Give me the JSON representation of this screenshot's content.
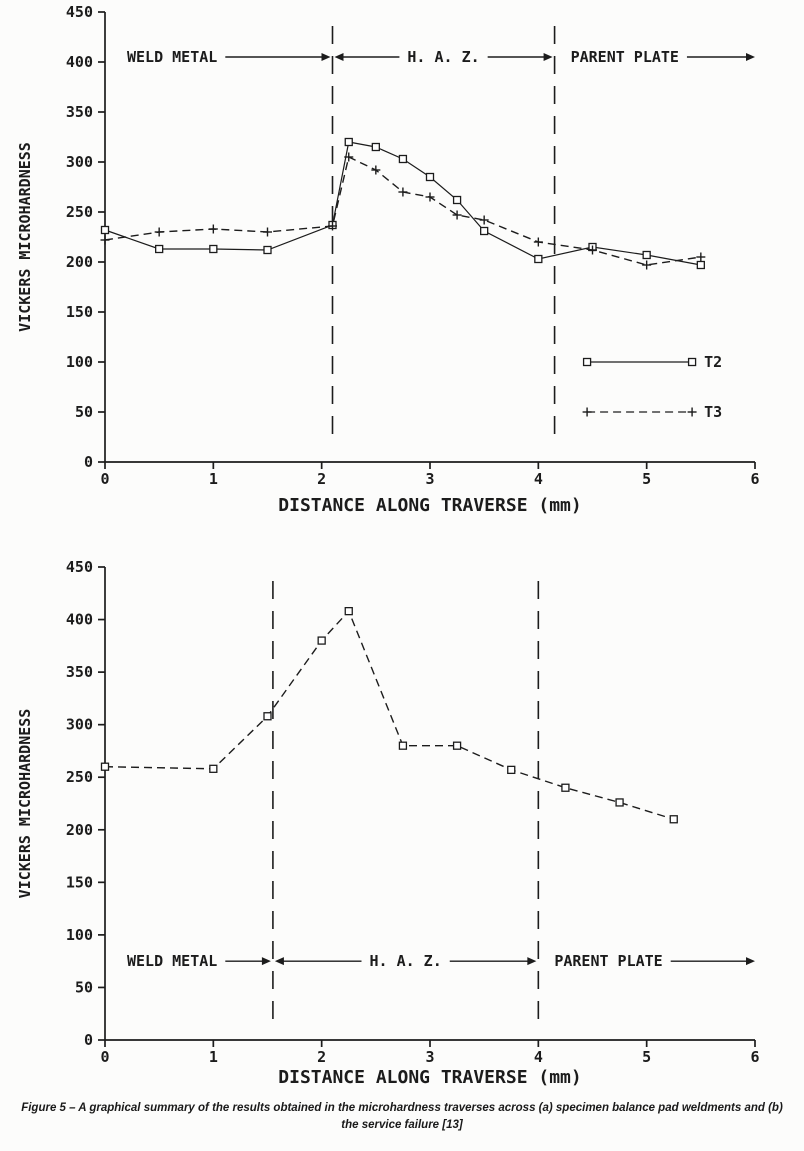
{
  "figure": {
    "caption_line1": "Figure 5 – A graphical summary of the results obtained in the microhardness traverses across (a) specimen balance pad weldments and (b)",
    "caption_line2": "the service failure [13]"
  },
  "chart_data": [
    {
      "id": "a",
      "type": "line",
      "title": "",
      "xlabel": "DISTANCE ALONG TRAVERSE (mm)",
      "ylabel": "VICKERS MICROHARDNESS",
      "xlim": [
        0,
        6
      ],
      "ylim": [
        0,
        450
      ],
      "xticks": [
        0,
        1,
        2,
        3,
        4,
        5,
        6
      ],
      "yticks": [
        0,
        50,
        100,
        150,
        200,
        250,
        300,
        350,
        400,
        450
      ],
      "grid": false,
      "zone_labels": [
        "WELD METAL",
        "H. A. Z.",
        "PARENT PLATE"
      ],
      "zone_boundaries_x": [
        2.1,
        4.15
      ],
      "zone_label_y": 405,
      "series": [
        {
          "name": "T2",
          "marker": "square",
          "line_style": "solid",
          "x": [
            0,
            0.5,
            1,
            1.5,
            2.1,
            2.25,
            2.5,
            2.75,
            3,
            3.25,
            3.5,
            4,
            4.5,
            5,
            5.5
          ],
          "y": [
            232,
            213,
            213,
            212,
            237,
            320,
            315,
            303,
            285,
            262,
            231,
            203,
            215,
            207,
            197
          ]
        },
        {
          "name": "T3",
          "marker": "plus",
          "line_style": "dashed",
          "x": [
            0,
            0.5,
            1,
            1.5,
            2.1,
            2.25,
            2.5,
            2.75,
            3,
            3.25,
            3.5,
            4,
            4.5,
            5,
            5.5
          ],
          "y": [
            222,
            230,
            233,
            230,
            236,
            305,
            292,
            270,
            265,
            247,
            242,
            220,
            212,
            197,
            205
          ]
        }
      ],
      "legend": {
        "position_x": 4.45,
        "entries": [
          {
            "label": "T2",
            "y": 100
          },
          {
            "label": "T3",
            "y": 50
          }
        ]
      }
    },
    {
      "id": "b",
      "type": "line",
      "title": "",
      "xlabel": "DISTANCE ALONG TRAVERSE (mm)",
      "ylabel": "VICKERS MICROHARDNESS",
      "xlim": [
        0,
        6
      ],
      "ylim": [
        0,
        450
      ],
      "xticks": [
        0,
        1,
        2,
        3,
        4,
        5,
        6
      ],
      "yticks": [
        0,
        50,
        100,
        150,
        200,
        250,
        300,
        350,
        400,
        450
      ],
      "grid": false,
      "zone_labels": [
        "WELD METAL",
        "H. A. Z.",
        "PARENT PLATE"
      ],
      "zone_boundaries_x": [
        1.55,
        4.0
      ],
      "zone_label_y": 75,
      "series": [
        {
          "name": "",
          "marker": "square",
          "line_style": "dashed",
          "x": [
            0,
            1,
            1.5,
            2,
            2.25,
            2.75,
            3.25,
            3.75,
            4.25,
            4.75,
            5.25
          ],
          "y": [
            260,
            258,
            308,
            380,
            408,
            280,
            280,
            257,
            240,
            226,
            210
          ]
        }
      ],
      "legend": null
    }
  ]
}
